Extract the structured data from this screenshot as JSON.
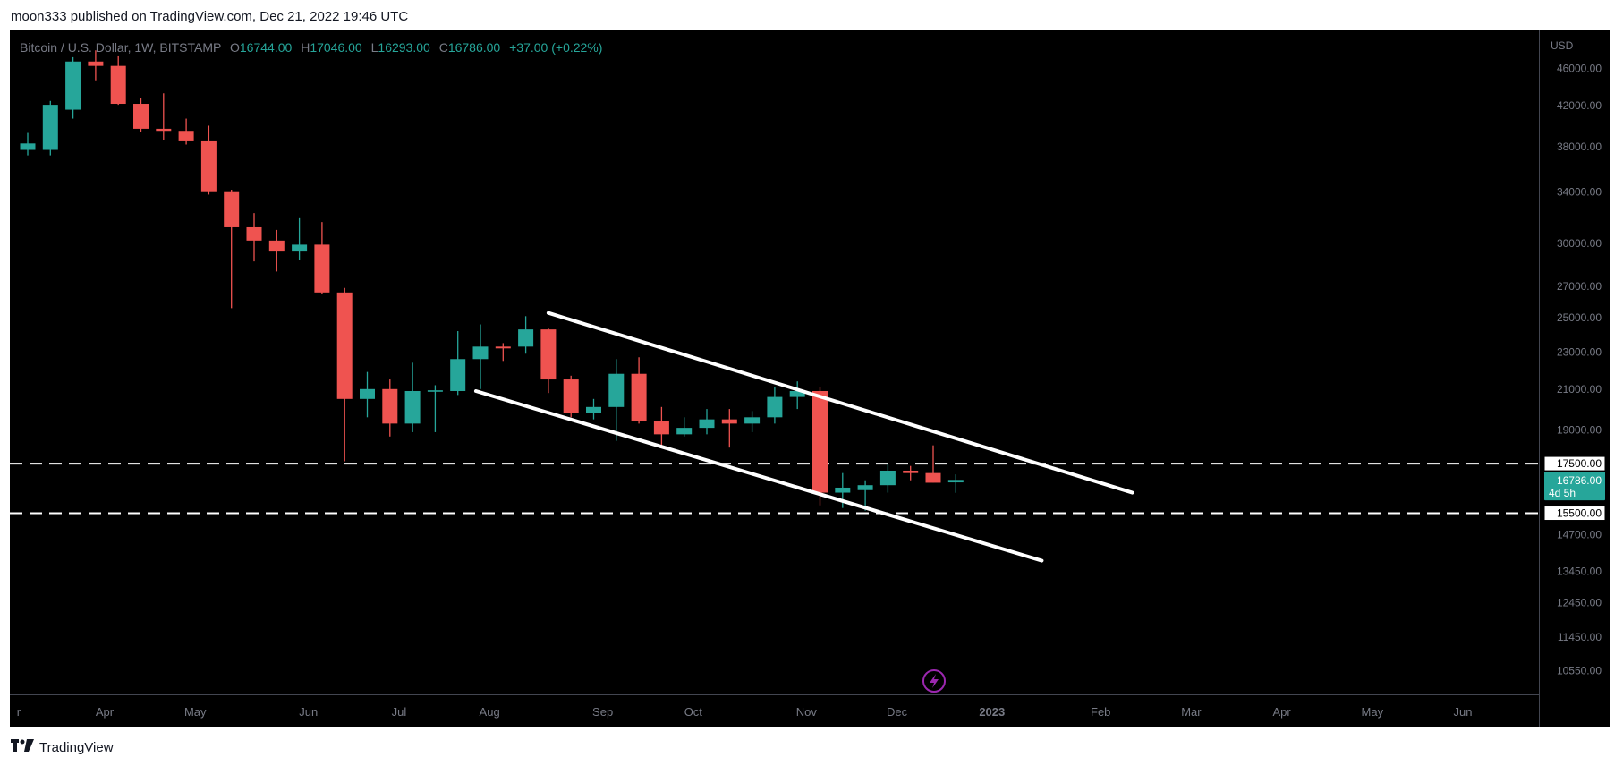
{
  "header": {
    "published_by": "moon333 published on TradingView.com, Dec 21, 2022 19:46 UTC"
  },
  "footer": {
    "brand": "TradingView",
    "logo_icon": "tradingview-logo-icon"
  },
  "legend": {
    "symbol": "Bitcoin / U.S. Dollar, 1W, BITSTAMP",
    "open_label": "O",
    "open": "16744.00",
    "high_label": "H",
    "high": "17046.00",
    "low_label": "L",
    "low": "16293.00",
    "close_label": "C",
    "close": "16786.00",
    "change": "+37.00 (+0.22%)"
  },
  "colors": {
    "up": "#26a69a",
    "down": "#ef5350",
    "background": "#000000",
    "lines": "#ffffff",
    "axis_text": "#787b86"
  },
  "chart_data": {
    "type": "candlestick",
    "title": "",
    "currency": "USD",
    "y_scale": "log",
    "ylim": [
      9950,
      50500
    ],
    "y_ticks": [
      "46000.00",
      "42000.00",
      "38000.00",
      "34000.00",
      "30000.00",
      "27000.00",
      "25000.00",
      "23000.00",
      "21000.00",
      "19000.00",
      "14700.00",
      "13450.00",
      "12450.00",
      "11450.00",
      "10550.00"
    ],
    "x_ticks": [
      "r",
      "Apr",
      "May",
      "Jun",
      "Jul",
      "Aug",
      "Sep",
      "Oct",
      "Nov",
      "Dec",
      "2023",
      "Feb",
      "Mar",
      "Apr",
      "May",
      "Jun"
    ],
    "x_tick_week_index": [
      -0.4,
      3.4,
      7.4,
      12.4,
      16.4,
      20.4,
      25.4,
      29.4,
      34.4,
      38.4,
      42.6,
      47.4,
      51.4,
      55.4,
      59.4,
      63.4
    ],
    "candles": [
      {
        "w": 0,
        "o": 37700,
        "h": 39300,
        "l": 37200,
        "c": 38300
      },
      {
        "w": 1,
        "o": 37700,
        "h": 42500,
        "l": 37200,
        "c": 42100
      },
      {
        "w": 2,
        "o": 41600,
        "h": 47300,
        "l": 40700,
        "c": 46800
      },
      {
        "w": 3,
        "o": 46800,
        "h": 48100,
        "l": 44700,
        "c": 46300
      },
      {
        "w": 4,
        "o": 46300,
        "h": 47400,
        "l": 42100,
        "c": 42200
      },
      {
        "w": 5,
        "o": 42200,
        "h": 42800,
        "l": 39400,
        "c": 39700
      },
      {
        "w": 6,
        "o": 39700,
        "h": 43300,
        "l": 38600,
        "c": 39500
      },
      {
        "w": 7,
        "o": 39500,
        "h": 40700,
        "l": 38200,
        "c": 38500
      },
      {
        "w": 8,
        "o": 38500,
        "h": 40000,
        "l": 33800,
        "c": 34000
      },
      {
        "w": 9,
        "o": 34000,
        "h": 34200,
        "l": 25600,
        "c": 31200
      },
      {
        "w": 10,
        "o": 31200,
        "h": 32300,
        "l": 28700,
        "c": 30200
      },
      {
        "w": 11,
        "o": 30200,
        "h": 31000,
        "l": 28000,
        "c": 29400
      },
      {
        "w": 12,
        "o": 29400,
        "h": 31900,
        "l": 28800,
        "c": 29900
      },
      {
        "w": 13,
        "o": 29900,
        "h": 31600,
        "l": 26500,
        "c": 26600
      },
      {
        "w": 14,
        "o": 26600,
        "h": 26900,
        "l": 17600,
        "c": 20500
      },
      {
        "w": 15,
        "o": 20500,
        "h": 21900,
        "l": 19600,
        "c": 21000
      },
      {
        "w": 16,
        "o": 21000,
        "h": 21500,
        "l": 18700,
        "c": 19300
      },
      {
        "w": 17,
        "o": 19300,
        "h": 22400,
        "l": 18900,
        "c": 20900
      },
      {
        "w": 18,
        "o": 20900,
        "h": 21200,
        "l": 18900,
        "c": 20900
      },
      {
        "w": 19,
        "o": 20900,
        "h": 24200,
        "l": 20700,
        "c": 22600
      },
      {
        "w": 20,
        "o": 22600,
        "h": 24600,
        "l": 21000,
        "c": 23300
      },
      {
        "w": 21,
        "o": 23300,
        "h": 23500,
        "l": 22500,
        "c": 23200
      },
      {
        "w": 22,
        "o": 23300,
        "h": 25100,
        "l": 22900,
        "c": 24300
      },
      {
        "w": 23,
        "o": 24300,
        "h": 24400,
        "l": 20800,
        "c": 21500
      },
      {
        "w": 24,
        "o": 21500,
        "h": 21700,
        "l": 19600,
        "c": 19800
      },
      {
        "w": 25,
        "o": 19800,
        "h": 20500,
        "l": 19500,
        "c": 20100
      },
      {
        "w": 26,
        "o": 20100,
        "h": 22600,
        "l": 18500,
        "c": 21800
      },
      {
        "w": 27,
        "o": 21800,
        "h": 22700,
        "l": 19300,
        "c": 19400
      },
      {
        "w": 28,
        "o": 19400,
        "h": 20100,
        "l": 18200,
        "c": 18800
      },
      {
        "w": 29,
        "o": 18800,
        "h": 19600,
        "l": 18700,
        "c": 19100
      },
      {
        "w": 30,
        "o": 19100,
        "h": 20000,
        "l": 18800,
        "c": 19500
      },
      {
        "w": 31,
        "o": 19500,
        "h": 20000,
        "l": 18200,
        "c": 19300
      },
      {
        "w": 32,
        "o": 19300,
        "h": 19900,
        "l": 18900,
        "c": 19600
      },
      {
        "w": 33,
        "o": 19600,
        "h": 21100,
        "l": 19300,
        "c": 20600
      },
      {
        "w": 34,
        "o": 20600,
        "h": 21400,
        "l": 20000,
        "c": 20900
      },
      {
        "w": 35,
        "o": 20900,
        "h": 21100,
        "l": 15800,
        "c": 16300
      },
      {
        "w": 36,
        "o": 16300,
        "h": 17100,
        "l": 15700,
        "c": 16500
      },
      {
        "w": 37,
        "o": 16400,
        "h": 16800,
        "l": 15600,
        "c": 16600
      },
      {
        "w": 38,
        "o": 16600,
        "h": 17500,
        "l": 16300,
        "c": 17200
      },
      {
        "w": 39,
        "o": 17200,
        "h": 17400,
        "l": 16800,
        "c": 17100
      },
      {
        "w": 40,
        "o": 17100,
        "h": 18300,
        "l": 16700,
        "c": 16700
      },
      {
        "w": 41,
        "o": 16744,
        "h": 17046,
        "l": 16293,
        "c": 16786
      }
    ],
    "horizontal_levels": [
      {
        "value": 17500,
        "label": "17500.00"
      },
      {
        "value": 15500,
        "label": "15500.00"
      }
    ],
    "trendlines": [
      {
        "from": {
          "w": 23,
          "v": 25300
        },
        "to": {
          "w": 48.8,
          "v": 16300
        }
      },
      {
        "from": {
          "w": 19.8,
          "v": 20900
        },
        "to": {
          "w": 44.8,
          "v": 13800
        }
      }
    ],
    "last_price": {
      "value": 16786,
      "label": "16786.00",
      "countdown": "4d 5h"
    }
  }
}
